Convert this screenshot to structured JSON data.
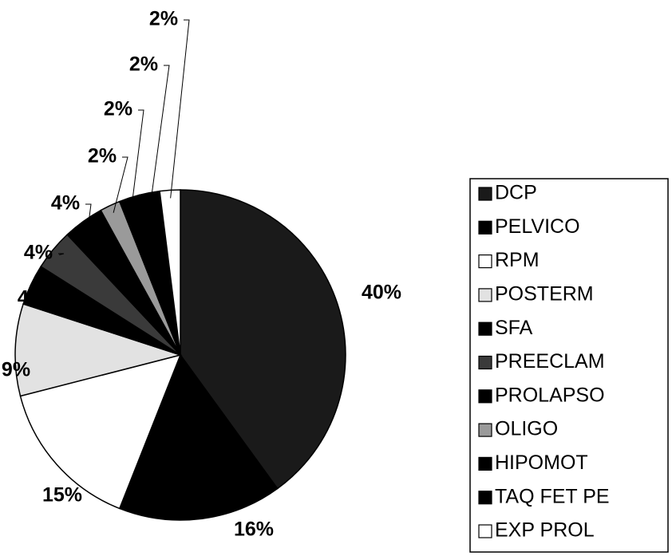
{
  "chart_data": {
    "type": "pie",
    "categories": [
      "DCP",
      "PELVICO",
      "RPM",
      "POSTERM",
      "SFA",
      "PREECLAM",
      "PROLAPSO",
      "OLIGO",
      "HIPOMOT",
      "TAQ FET PE",
      "EXP PROL"
    ],
    "values": [
      40,
      16,
      15,
      9,
      4,
      4,
      4,
      2,
      2,
      2,
      2
    ],
    "value_labels": [
      "40%",
      "16%",
      "15%",
      "9%",
      "4%",
      "4%",
      "4%",
      "2%",
      "2%",
      "2%",
      "2%"
    ],
    "colors": [
      "#1a1a1a",
      "#000000",
      "#ffffff",
      "#e2e2e2",
      "#000000",
      "#3a3a3a",
      "#000000",
      "#9a9a9a",
      "#000000",
      "#000000",
      "#ffffff"
    ]
  }
}
